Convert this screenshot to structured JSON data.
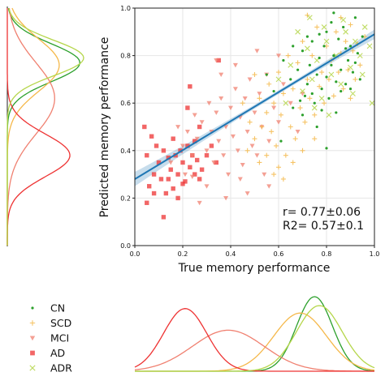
{
  "chart_data": {
    "type": "scatter",
    "xlabel": "True memory performance",
    "ylabel": "Predicted memory performance",
    "xlim": [
      0,
      1
    ],
    "ylim": [
      0,
      1
    ],
    "xticks": [
      "0.0",
      "0.2",
      "0.4",
      "0.6",
      "0.8",
      "1.0"
    ],
    "yticks": [
      "0.0",
      "0.2",
      "0.4",
      "0.6",
      "0.8",
      "1.0"
    ],
    "grid": true,
    "annotation": {
      "r_label": "r= 0.77±0.06",
      "r2_label": "R2= 0.57±0.1"
    },
    "regression": {
      "color": "#1f77b4",
      "x": [
        0,
        1
      ],
      "y": [
        0.28,
        0.89
      ],
      "ci_at_x0": 0.03,
      "ci_at_x1": 0.02,
      "ci_center_x": 0.6,
      "ci_center": 0.008
    },
    "legend": {
      "position": "bottom-left",
      "items": [
        {
          "label": "CN",
          "color": "#2ca02c",
          "marker": "dot"
        },
        {
          "label": "SCD",
          "color": "#f5b84a",
          "marker": "plus"
        },
        {
          "label": "MCI",
          "color": "#f08070",
          "marker": "triangle-down"
        },
        {
          "label": "AD",
          "color": "#ee3333",
          "marker": "square"
        },
        {
          "label": "ADR",
          "color": "#b5d64a",
          "marker": "x"
        }
      ]
    },
    "series": [
      {
        "name": "CN",
        "color": "#2ca02c",
        "marker": "dot",
        "points": [
          [
            0.55,
            0.72
          ],
          [
            0.58,
            0.65
          ],
          [
            0.62,
            0.78
          ],
          [
            0.65,
            0.7
          ],
          [
            0.66,
            0.58
          ],
          [
            0.68,
            0.74
          ],
          [
            0.7,
            0.82
          ],
          [
            0.71,
            0.63
          ],
          [
            0.72,
            0.68
          ],
          [
            0.73,
            0.76
          ],
          [
            0.74,
            0.86
          ],
          [
            0.75,
            0.6
          ],
          [
            0.76,
            0.72
          ],
          [
            0.77,
            0.79
          ],
          [
            0.78,
            0.66
          ],
          [
            0.79,
            0.84
          ],
          [
            0.8,
            0.71
          ],
          [
            0.8,
            0.9
          ],
          [
            0.81,
            0.62
          ],
          [
            0.82,
            0.76
          ],
          [
            0.83,
            0.8
          ],
          [
            0.84,
            0.69
          ],
          [
            0.85,
            0.87
          ],
          [
            0.86,
            0.74
          ],
          [
            0.87,
            0.92
          ],
          [
            0.88,
            0.68
          ],
          [
            0.89,
            0.78
          ],
          [
            0.9,
            0.84
          ],
          [
            0.91,
            0.73
          ],
          [
            0.92,
            0.96
          ],
          [
            0.93,
            0.81
          ],
          [
            0.94,
            0.7
          ],
          [
            0.95,
            0.88
          ],
          [
            0.66,
            0.84
          ],
          [
            0.7,
            0.55
          ],
          [
            0.74,
            0.64
          ],
          [
            0.78,
            0.57
          ],
          [
            0.82,
            0.94
          ],
          [
            0.84,
            0.56
          ],
          [
            0.76,
            0.5
          ],
          [
            0.8,
            0.41
          ],
          [
            0.61,
            0.44
          ],
          [
            0.83,
            0.98
          ],
          [
            0.72,
            0.88
          ],
          [
            0.86,
            0.65
          ],
          [
            0.88,
            0.83
          ],
          [
            0.9,
            0.66
          ],
          [
            0.92,
            0.77
          ],
          [
            0.69,
            0.61
          ],
          [
            0.77,
            0.89
          ]
        ]
      },
      {
        "name": "SCD",
        "color": "#f5b84a",
        "marker": "plus",
        "points": [
          [
            0.45,
            0.6
          ],
          [
            0.48,
            0.52
          ],
          [
            0.5,
            0.45
          ],
          [
            0.52,
            0.62
          ],
          [
            0.53,
            0.5
          ],
          [
            0.55,
            0.56
          ],
          [
            0.56,
            0.68
          ],
          [
            0.57,
            0.48
          ],
          [
            0.58,
            0.6
          ],
          [
            0.59,
            0.42
          ],
          [
            0.6,
            0.73
          ],
          [
            0.61,
            0.55
          ],
          [
            0.62,
            0.64
          ],
          [
            0.63,
            0.38
          ],
          [
            0.64,
            0.8
          ],
          [
            0.65,
            0.5
          ],
          [
            0.66,
            0.66
          ],
          [
            0.67,
            0.45
          ],
          [
            0.68,
            0.77
          ],
          [
            0.69,
            0.58
          ],
          [
            0.7,
            0.86
          ],
          [
            0.71,
            0.52
          ],
          [
            0.72,
            0.7
          ],
          [
            0.73,
            0.62
          ],
          [
            0.74,
            0.8
          ],
          [
            0.75,
            0.55
          ],
          [
            0.76,
            0.92
          ],
          [
            0.77,
            0.67
          ],
          [
            0.78,
            0.73
          ],
          [
            0.79,
            0.6
          ],
          [
            0.8,
            0.84
          ],
          [
            0.81,
            0.7
          ],
          [
            0.82,
            0.78
          ],
          [
            0.83,
            0.63
          ],
          [
            0.84,
            0.9
          ],
          [
            0.85,
            0.73
          ],
          [
            0.86,
            0.81
          ],
          [
            0.87,
            0.66
          ],
          [
            0.88,
            0.86
          ],
          [
            0.89,
            0.74
          ],
          [
            0.9,
            0.62
          ],
          [
            0.91,
            0.82
          ],
          [
            0.92,
            0.7
          ],
          [
            0.93,
            0.85
          ],
          [
            0.94,
            0.76
          ],
          [
            0.96,
            0.88
          ],
          [
            0.55,
            0.38
          ],
          [
            0.6,
            0.33
          ],
          [
            0.5,
            0.72
          ],
          [
            0.58,
            0.3
          ],
          [
            0.62,
            0.28
          ],
          [
            0.7,
            0.4
          ],
          [
            0.75,
            0.45
          ],
          [
            0.72,
            0.97
          ],
          [
            0.86,
            0.96
          ],
          [
            0.9,
            0.93
          ],
          [
            0.47,
            0.4
          ],
          [
            0.52,
            0.35
          ],
          [
            0.66,
            0.35
          ]
        ]
      },
      {
        "name": "MCI",
        "color": "#f08070",
        "marker": "triangle-down",
        "points": [
          [
            0.15,
            0.35
          ],
          [
            0.18,
            0.5
          ],
          [
            0.2,
            0.42
          ],
          [
            0.22,
            0.48
          ],
          [
            0.24,
            0.38
          ],
          [
            0.25,
            0.55
          ],
          [
            0.26,
            0.45
          ],
          [
            0.28,
            0.52
          ],
          [
            0.3,
            0.4
          ],
          [
            0.31,
            0.6
          ],
          [
            0.32,
            0.48
          ],
          [
            0.33,
            0.35
          ],
          [
            0.34,
            0.56
          ],
          [
            0.35,
            0.44
          ],
          [
            0.36,
            0.62
          ],
          [
            0.37,
            0.38
          ],
          [
            0.38,
            0.5
          ],
          [
            0.39,
            0.3
          ],
          [
            0.4,
            0.58
          ],
          [
            0.41,
            0.46
          ],
          [
            0.42,
            0.66
          ],
          [
            0.43,
            0.4
          ],
          [
            0.44,
            0.54
          ],
          [
            0.45,
            0.34
          ],
          [
            0.46,
            0.62
          ],
          [
            0.47,
            0.48
          ],
          [
            0.48,
            0.7
          ],
          [
            0.49,
            0.42
          ],
          [
            0.5,
            0.56
          ],
          [
            0.51,
            0.38
          ],
          [
            0.52,
            0.64
          ],
          [
            0.53,
            0.5
          ],
          [
            0.55,
            0.72
          ],
          [
            0.56,
            0.44
          ],
          [
            0.58,
            0.58
          ],
          [
            0.6,
            0.52
          ],
          [
            0.62,
            0.68
          ],
          [
            0.65,
            0.6
          ],
          [
            0.68,
            0.48
          ],
          [
            0.7,
            0.64
          ],
          [
            0.34,
            0.78
          ],
          [
            0.36,
            0.72
          ],
          [
            0.44,
            0.28
          ],
          [
            0.3,
            0.25
          ],
          [
            0.38,
            0.2
          ],
          [
            0.54,
            0.3
          ],
          [
            0.56,
            0.25
          ],
          [
            0.27,
            0.18
          ],
          [
            0.47,
            0.22
          ],
          [
            0.21,
            0.3
          ],
          [
            0.51,
            0.82
          ],
          [
            0.6,
            0.8
          ],
          [
            0.42,
            0.76
          ],
          [
            0.24,
            0.29
          ]
        ]
      },
      {
        "name": "AD",
        "color": "#ee3333",
        "marker": "square",
        "points": [
          [
            0.04,
            0.5
          ],
          [
            0.05,
            0.38
          ],
          [
            0.06,
            0.25
          ],
          [
            0.07,
            0.46
          ],
          [
            0.08,
            0.3
          ],
          [
            0.09,
            0.42
          ],
          [
            0.1,
            0.35
          ],
          [
            0.11,
            0.28
          ],
          [
            0.12,
            0.4
          ],
          [
            0.13,
            0.22
          ],
          [
            0.14,
            0.37
          ],
          [
            0.15,
            0.32
          ],
          [
            0.16,
            0.45
          ],
          [
            0.17,
            0.38
          ],
          [
            0.18,
            0.3
          ],
          [
            0.19,
            0.4
          ],
          [
            0.2,
            0.35
          ],
          [
            0.21,
            0.27
          ],
          [
            0.22,
            0.42
          ],
          [
            0.23,
            0.33
          ],
          [
            0.24,
            0.38
          ],
          [
            0.25,
            0.3
          ],
          [
            0.26,
            0.36
          ],
          [
            0.27,
            0.28
          ],
          [
            0.28,
            0.32
          ],
          [
            0.3,
            0.38
          ],
          [
            0.32,
            0.42
          ],
          [
            0.34,
            0.35
          ],
          [
            0.12,
            0.12
          ],
          [
            0.18,
            0.2
          ],
          [
            0.2,
            0.26
          ],
          [
            0.16,
            0.24
          ],
          [
            0.05,
            0.18
          ],
          [
            0.08,
            0.22
          ],
          [
            0.23,
            0.67
          ],
          [
            0.35,
            0.78
          ],
          [
            0.25,
            0.44
          ],
          [
            0.27,
            0.5
          ],
          [
            0.22,
            0.58
          ],
          [
            0.14,
            0.28
          ]
        ]
      },
      {
        "name": "ADR",
        "color": "#b5d64a",
        "marker": "x",
        "points": [
          [
            0.6,
            0.7
          ],
          [
            0.65,
            0.76
          ],
          [
            0.7,
            0.65
          ],
          [
            0.72,
            0.83
          ],
          [
            0.74,
            0.7
          ],
          [
            0.76,
            0.78
          ],
          [
            0.78,
            0.62
          ],
          [
            0.8,
            0.86
          ],
          [
            0.82,
            0.72
          ],
          [
            0.84,
            0.8
          ],
          [
            0.86,
            0.68
          ],
          [
            0.88,
            0.9
          ],
          [
            0.9,
            0.75
          ],
          [
            0.92,
            0.86
          ],
          [
            0.94,
            0.8
          ],
          [
            0.96,
            0.92
          ],
          [
            0.98,
            0.84
          ],
          [
            0.63,
            0.6
          ],
          [
            0.68,
            0.9
          ],
          [
            0.75,
            0.58
          ],
          [
            0.81,
            0.55
          ],
          [
            0.87,
            0.95
          ],
          [
            0.91,
            0.64
          ],
          [
            0.95,
            0.72
          ],
          [
            0.99,
            0.6
          ],
          [
            0.73,
            0.96
          ],
          [
            0.79,
            0.92
          ]
        ]
      }
    ],
    "marginal_x": {
      "x_range": [
        0,
        1
      ],
      "curves": [
        {
          "name": "CN",
          "color": "#2ca02c",
          "peak_x": 0.75,
          "peak": 1.0,
          "bw": 0.075
        },
        {
          "name": "SCD",
          "color": "#f5b84a",
          "peak_x": 0.69,
          "peak": 0.78,
          "bw": 0.11
        },
        {
          "name": "MCI",
          "color": "#f08070",
          "peak_x": 0.39,
          "peak": 0.55,
          "bw": 0.15
        },
        {
          "name": "AD",
          "color": "#ee3333",
          "peak_x": 0.21,
          "peak": 0.84,
          "bw": 0.09
        },
        {
          "name": "ADR",
          "color": "#b5d64a",
          "peak_x": 0.77,
          "peak": 0.88,
          "bw": 0.095
        }
      ]
    },
    "marginal_y": {
      "y_range": [
        0,
        1
      ],
      "curves": [
        {
          "name": "CN",
          "color": "#2ca02c",
          "peak_y": 0.77,
          "peak": 0.95,
          "bw": 0.08
        },
        {
          "name": "SCD",
          "color": "#f5b84a",
          "peak_y": 0.76,
          "peak": 0.68,
          "bw": 0.11
        },
        {
          "name": "MCI",
          "color": "#f08070",
          "peak_y": 0.62,
          "peak": 0.62,
          "bw": 0.15
        },
        {
          "name": "AD",
          "color": "#ee3333",
          "peak_y": 0.38,
          "peak": 0.82,
          "bw": 0.09
        },
        {
          "name": "ADR",
          "color": "#b5d64a",
          "peak_y": 0.79,
          "peak": 1.0,
          "bw": 0.075
        }
      ]
    }
  }
}
